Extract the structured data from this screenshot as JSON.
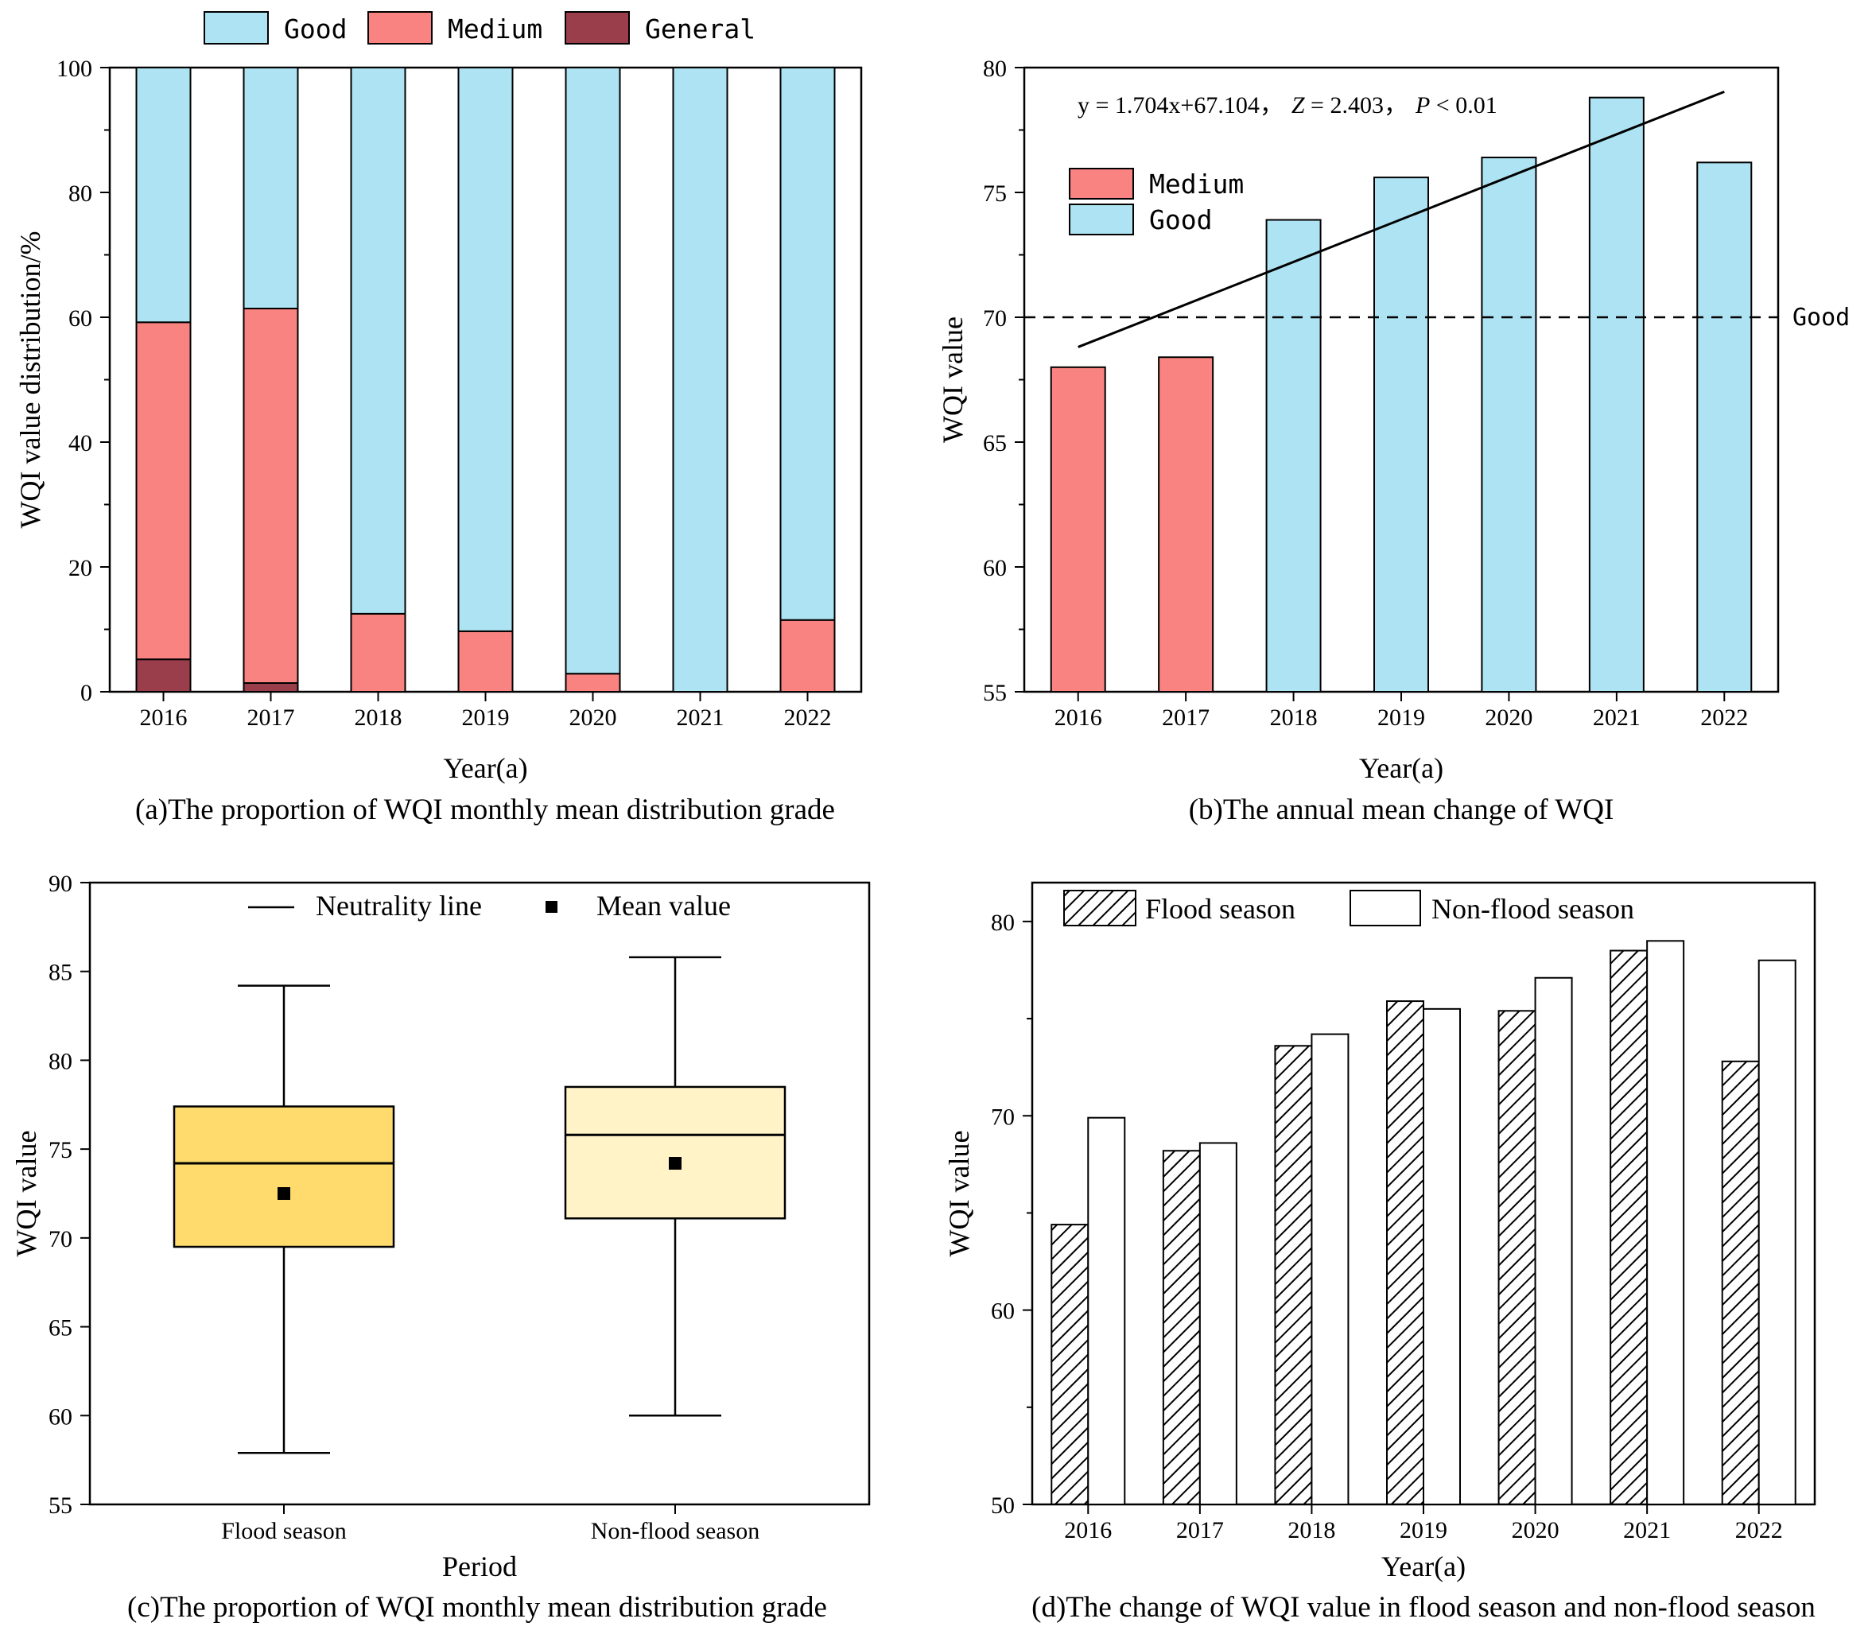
{
  "chart_data": [
    {
      "id": "a",
      "type": "bar",
      "stacked": true,
      "caption": "(a)The proportion of WQI monthly mean distribution grade",
      "xlabel": "Year(a)",
      "ylabel": "WQI value distribution/%",
      "ylim": [
        0,
        100
      ],
      "yticks": [
        0,
        20,
        40,
        60,
        80,
        100
      ],
      "categories": [
        "2016",
        "2017",
        "2018",
        "2019",
        "2020",
        "2021",
        "2022"
      ],
      "series": [
        {
          "name": "General",
          "color": "#9b3e4b",
          "values": [
            5.2,
            1.4,
            0,
            0,
            0,
            0,
            0
          ]
        },
        {
          "name": "Medium",
          "color": "#f98380",
          "values": [
            54.0,
            60.0,
            12.5,
            9.7,
            2.9,
            0,
            11.5
          ]
        },
        {
          "name": "Good",
          "color": "#ade3f2",
          "values": [
            40.8,
            38.6,
            87.5,
            90.3,
            97.1,
            100,
            88.5
          ]
        }
      ],
      "legend": [
        "Good",
        "Medium",
        "General"
      ]
    },
    {
      "id": "b",
      "type": "bar",
      "caption": "(b)The annual mean change of WQI",
      "xlabel": "Year(a)",
      "ylabel": "WQI value",
      "ylim": [
        55,
        80
      ],
      "yticks": [
        55,
        60,
        65,
        70,
        75,
        80
      ],
      "categories": [
        "2016",
        "2017",
        "2018",
        "2019",
        "2020",
        "2021",
        "2022"
      ],
      "values": [
        68.0,
        68.4,
        73.9,
        75.6,
        76.4,
        78.8,
        76.2
      ],
      "grades": [
        "Medium",
        "Medium",
        "Good",
        "Good",
        "Good",
        "Good",
        "Good"
      ],
      "colors": {
        "Medium": "#f98380",
        "Good": "#ade3f2"
      },
      "legend": [
        "Medium",
        "Good"
      ],
      "threshold": {
        "value": 70,
        "label": "Good"
      },
      "trend": {
        "slope": 1.704,
        "intercept": 67.104,
        "equation": "y = 1.704x+67.104，",
        "z_label": "Z",
        "z_text": " = 2.403，",
        "p_label": "P",
        "p_text": " < 0.01"
      }
    },
    {
      "id": "c",
      "type": "box",
      "caption": "(c)The proportion of WQI monthly mean distribution grade",
      "xlabel": "Period",
      "ylabel": "WQI value",
      "ylim": [
        55,
        90
      ],
      "yticks": [
        55,
        60,
        65,
        70,
        75,
        80,
        85,
        90
      ],
      "categories": [
        "Flood season",
        "Non-flood season"
      ],
      "boxes": [
        {
          "name": "Flood season",
          "min": 57.9,
          "q1": 69.5,
          "median": 74.2,
          "q3": 77.4,
          "max": 84.2,
          "mean": 72.5,
          "color": "#fedb6c"
        },
        {
          "name": "Non-flood season",
          "min": 60.0,
          "q1": 71.1,
          "median": 75.8,
          "q3": 78.5,
          "max": 85.8,
          "mean": 74.2,
          "color": "#fff3c7"
        }
      ],
      "legend": [
        "Neutrality line",
        "Mean value"
      ]
    },
    {
      "id": "d",
      "type": "bar",
      "caption": "(d)The change of WQI value in flood season and non-flood season",
      "xlabel": "Year(a)",
      "ylabel": "WQI value",
      "ylim": [
        50,
        82
      ],
      "yticks": [
        50,
        60,
        70,
        80
      ],
      "categories": [
        "2016",
        "2017",
        "2018",
        "2019",
        "2020",
        "2021",
        "2022"
      ],
      "series": [
        {
          "name": "Flood season",
          "values": [
            64.4,
            68.2,
            73.6,
            75.9,
            75.4,
            78.5,
            72.8
          ]
        },
        {
          "name": "Non-flood season",
          "values": [
            69.9,
            68.6,
            74.2,
            75.5,
            77.1,
            79.0,
            78.0
          ]
        }
      ],
      "legend": [
        "Flood season",
        "Non-flood season"
      ]
    }
  ]
}
